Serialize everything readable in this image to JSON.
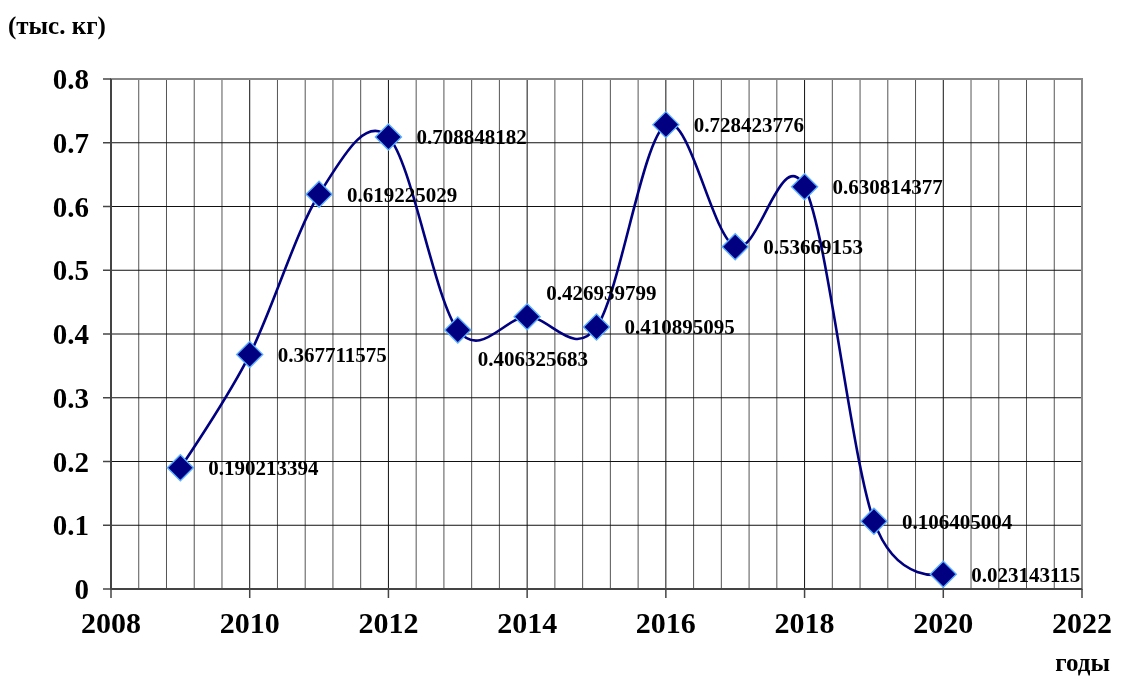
{
  "chart_data": {
    "type": "line",
    "xlabel": "годы",
    "ylabel": "(тыс. кг)",
    "x": [
      2009,
      2010,
      2011,
      2012,
      2013,
      2014,
      2015,
      2016,
      2017,
      2018,
      2019,
      2020
    ],
    "series": [
      {
        "color": "#000080",
        "values": [
          0.190213394,
          0.367711575,
          0.619225029,
          0.708848182,
          0.406325683,
          0.426939799,
          0.410895095,
          0.728423776,
          0.53669153,
          0.630814377,
          0.106405004,
          0.023143115
        ]
      }
    ],
    "xlim": [
      2008,
      2022
    ],
    "xticks": [
      2008,
      {
        "value": 2008.4,
        "label": null
      },
      {
        "value": 2008.8,
        "label": null
      },
      {
        "value": 2009.2,
        "label": null
      },
      {
        "value": 2009.6,
        "label": null
      },
      2010,
      {
        "value": 2010.4,
        "label": null
      },
      {
        "value": 2010.8,
        "label": null
      },
      {
        "value": 2011.2,
        "label": null
      },
      {
        "value": 2011.6,
        "label": null
      },
      2012,
      {
        "value": 2012.4,
        "label": null
      },
      {
        "value": 2012.8,
        "label": null
      },
      {
        "value": 2013.2,
        "label": null
      },
      {
        "value": 2013.6,
        "label": null
      },
      2014,
      {
        "value": 2014.4,
        "label": null
      },
      {
        "value": 2014.8,
        "label": null
      },
      {
        "value": 2015.2,
        "label": null
      },
      {
        "value": 2015.6,
        "label": null
      },
      2016,
      {
        "value": 2016.4,
        "label": null
      },
      {
        "value": 2016.8,
        "label": null
      },
      {
        "value": 2017.2,
        "label": null
      },
      {
        "value": 2017.6,
        "label": null
      },
      2018,
      {
        "value": 2018.4,
        "label": null
      },
      {
        "value": 2018.8,
        "label": null
      },
      {
        "value": 2019.2,
        "label": null
      },
      {
        "value": 2019.6,
        "label": null
      },
      2020,
      {
        "value": 2020.4,
        "label": null
      },
      {
        "value": 2020.8,
        "label": null
      },
      {
        "value": 2021.2,
        "label": null
      },
      {
        "value": 2021.6,
        "label": null
      },
      2022
    ],
    "ylim": [
      0,
      0.8
    ],
    "yticks": [
      0,
      0.1,
      0.2,
      0.3,
      0.4,
      0.5,
      0.6,
      0.7,
      0.8
    ],
    "grid": true,
    "marker": "diamond",
    "data_labels": true
  }
}
